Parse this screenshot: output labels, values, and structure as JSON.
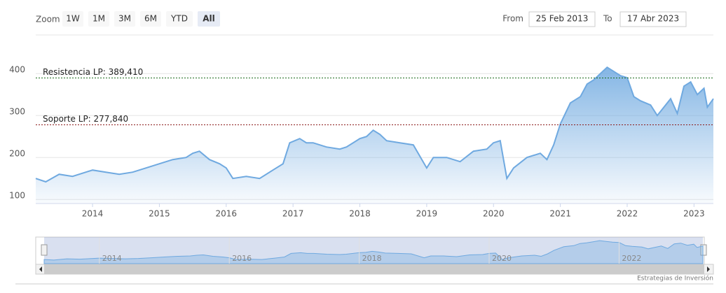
{
  "chart_data": {
    "type": "area",
    "x": [
      2013.15,
      2013.3,
      2013.5,
      2013.7,
      2013.9,
      2014.0,
      2014.2,
      2014.4,
      2014.6,
      2014.8,
      2015.0,
      2015.2,
      2015.4,
      2015.5,
      2015.6,
      2015.75,
      2015.9,
      2016.0,
      2016.1,
      2016.3,
      2016.5,
      2016.7,
      2016.85,
      2016.95,
      2017.1,
      2017.2,
      2017.3,
      2017.5,
      2017.7,
      2017.8,
      2018.0,
      2018.1,
      2018.2,
      2018.3,
      2018.4,
      2018.6,
      2018.8,
      2019.0,
      2019.1,
      2019.3,
      2019.5,
      2019.7,
      2019.9,
      2020.0,
      2020.1,
      2020.2,
      2020.3,
      2020.5,
      2020.7,
      2020.8,
      2020.9,
      2021.0,
      2021.15,
      2021.3,
      2021.4,
      2021.5,
      2021.6,
      2021.7,
      2021.8,
      2021.9,
      2022.0,
      2022.1,
      2022.2,
      2022.35,
      2022.45,
      2022.55,
      2022.65,
      2022.75,
      2022.85,
      2022.95,
      2023.05,
      2023.15,
      2023.2,
      2023.29
    ],
    "values": [
      150,
      142,
      160,
      155,
      165,
      170,
      165,
      160,
      165,
      175,
      185,
      195,
      200,
      210,
      215,
      195,
      185,
      175,
      150,
      155,
      150,
      170,
      185,
      235,
      245,
      235,
      235,
      225,
      220,
      225,
      245,
      250,
      265,
      255,
      240,
      235,
      230,
      175,
      200,
      200,
      190,
      215,
      220,
      235,
      240,
      150,
      175,
      200,
      210,
      195,
      230,
      280,
      330,
      345,
      375,
      385,
      400,
      415,
      405,
      395,
      390,
      345,
      335,
      325,
      300,
      320,
      340,
      305,
      370,
      380,
      350,
      365,
      320,
      340
    ],
    "color": "#6fa9e0",
    "xlim": [
      2013.15,
      2023.29
    ],
    "xticks": [
      2014,
      2015,
      2016,
      2017,
      2018,
      2019,
      2020,
      2021,
      2022,
      2023
    ],
    "ylim": [
      92,
      492
    ],
    "yticks": [
      100,
      200,
      300,
      400
    ],
    "grid": true,
    "plot_lines": [
      {
        "label": "Resistencia LP: 389,410",
        "value": 389.41,
        "color": "#1a6b1a"
      },
      {
        "label": "Soporte LP: 277,840",
        "value": 277.84,
        "color": "#8b1a1a"
      }
    ],
    "navigator_xticks": [
      2014,
      2016,
      2018,
      2020,
      2022
    ]
  },
  "range_selector": {
    "zoom_label": "Zoom",
    "buttons": [
      "1W",
      "1M",
      "3M",
      "6M",
      "YTD",
      "All"
    ],
    "selected": 5,
    "from_label": "From",
    "from_value": "25 Feb 2013",
    "to_label": "To",
    "to_value": "17 Abr 2023"
  },
  "credits": "Estrategias de Inversión"
}
